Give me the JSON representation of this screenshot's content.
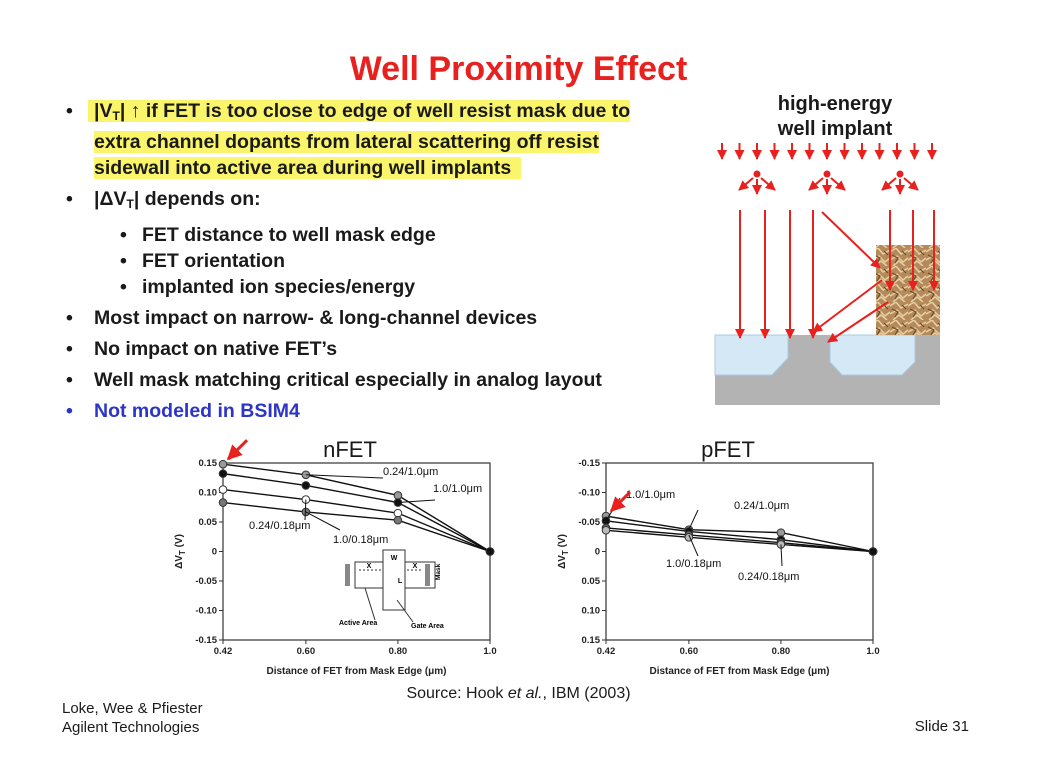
{
  "title": "Well Proximity Effect",
  "bullets": {
    "b1": {
      "vt": "|V",
      "vt_sub": "T",
      "arrow": "| ↑",
      "line1": " if FET is too close to edge of well resist mask due to",
      "line2": "extra channel dopants from lateral scattering off resist",
      "line3": "sidewall into active area during well implants"
    },
    "b2": {
      "pre": "|ΔV",
      "sub": "T",
      "post": "| depends on:"
    },
    "sub_items": [
      "FET distance to well mask edge",
      "FET orientation",
      "implanted ion species/energy"
    ],
    "b3": "Most impact on narrow- & long-channel devices",
    "b4": "No impact on native FET’s",
    "b5": "Well mask matching critical especially in analog layout",
    "b6": "Not modeled in BSIM4",
    "bullet_char": "•"
  },
  "implant_label": {
    "line1": "high-energy",
    "line2": "well implant"
  },
  "colors": {
    "title": "#e8201e",
    "blue": "#2d35c8",
    "highlight": "#faf56a",
    "arrow": "#e8201e"
  },
  "chart_data": [
    {
      "type": "line",
      "title": "nFET",
      "xlabel": "Distance of FET from Mask Edge (μm)",
      "ylabel": "ΔV",
      "ylabel_sub": "T",
      "ylabel_unit": " (V)",
      "xlim": [
        0.42,
        1.0
      ],
      "ylim": [
        -0.15,
        0.15
      ],
      "x": [
        0.42,
        0.6,
        0.8,
        1.0
      ],
      "x_ticks": [
        "0.42",
        "0.60",
        "0.80",
        "1.0"
      ],
      "y_ticks": [
        0.15,
        0.1,
        0.05,
        0,
        -0.05,
        -0.1,
        -0.15
      ],
      "y_tick_labels": [
        "0.15",
        "0.10",
        "0.05",
        "0",
        "-0.05",
        "-0.10",
        "-0.15"
      ],
      "series": [
        {
          "name": "0.24/1.0μm",
          "values": [
            0.148,
            0.13,
            0.095,
            0.0
          ],
          "marker": "#999999"
        },
        {
          "name": "1.0/1.0μm",
          "values": [
            0.132,
            0.112,
            0.083,
            0.0
          ],
          "marker": "#111111"
        },
        {
          "name": "0.24/0.18μm",
          "values": [
            0.105,
            0.088,
            0.065,
            0.0
          ],
          "marker": "#ffffff"
        },
        {
          "name": "1.0/0.18μm",
          "values": [
            0.083,
            0.067,
            0.053,
            0.0
          ],
          "marker": "#777777"
        }
      ],
      "inset": {
        "w": "W",
        "x_left": "X",
        "x_right": "X",
        "l": "L",
        "mask": "Mask",
        "active_area": "Active Area",
        "gate_area": "Gate Area"
      }
    },
    {
      "type": "line",
      "title": "pFET",
      "xlabel": "Distance of FET from Mask Edge (μm)",
      "ylabel": "ΔV",
      "ylabel_sub": "T",
      "ylabel_unit": " (V)",
      "xlim": [
        0.42,
        1.0
      ],
      "ylim": [
        -0.15,
        0.15
      ],
      "y_inverted": true,
      "x": [
        0.42,
        0.6,
        0.8,
        1.0
      ],
      "x_ticks": [
        "0.42",
        "0.60",
        "0.80",
        "1.0"
      ],
      "y_ticks": [
        -0.15,
        -0.1,
        -0.05,
        0,
        0.05,
        0.1,
        0.15
      ],
      "y_tick_labels": [
        "-0.15",
        "-0.10",
        "-0.05",
        "0",
        "0.05",
        "0.10",
        "0.15"
      ],
      "series": [
        {
          "name": "0.24/1.0μm",
          "values": [
            -0.06,
            -0.037,
            -0.032,
            0.0
          ],
          "marker": "#999999"
        },
        {
          "name": "1.0/1.0μm",
          "values": [
            -0.052,
            -0.034,
            -0.02,
            0.0
          ],
          "marker": "#111111"
        },
        {
          "name": "1.0/0.18μm",
          "values": [
            -0.04,
            -0.028,
            -0.015,
            0.0
          ],
          "marker": "#666666"
        },
        {
          "name": "0.24/0.18μm",
          "values": [
            -0.036,
            -0.024,
            -0.012,
            0.0
          ],
          "marker": "#bbbbbb"
        }
      ]
    }
  ],
  "source": {
    "pre": "Source: Hook ",
    "etal": "et al.",
    "post": ", IBM (2003)"
  },
  "footer": {
    "authors": "Loke, Wee & Pfiester",
    "company": "Agilent Technologies",
    "slide": "Slide 31"
  }
}
